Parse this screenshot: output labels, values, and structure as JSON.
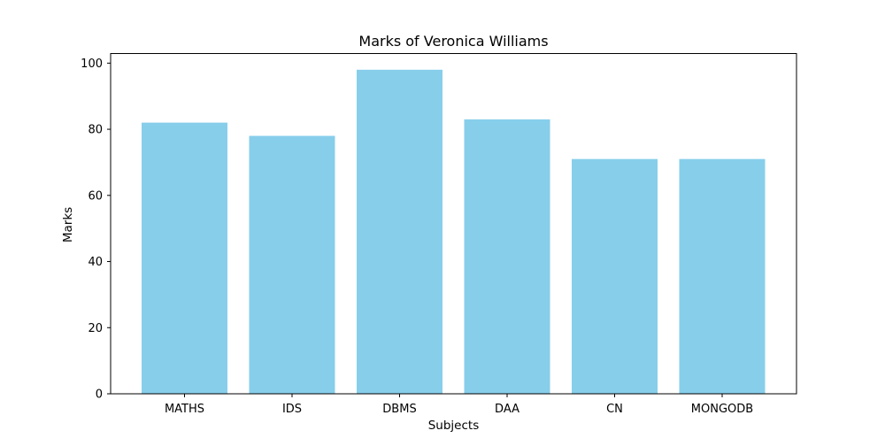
{
  "chart_data": {
    "type": "bar",
    "title": "Marks of Veronica Williams",
    "xlabel": "Subjects",
    "ylabel": "Marks",
    "categories": [
      "MATHS",
      "IDS",
      "DBMS",
      "DAA",
      "CN",
      "MONGODB"
    ],
    "values": [
      82,
      78,
      98,
      83,
      71,
      71
    ],
    "ylim": [
      0,
      102.9
    ],
    "yticks": [
      0,
      20,
      40,
      60,
      80,
      100
    ],
    "ytick_labels": [
      "0",
      "20",
      "40",
      "60",
      "80",
      "100"
    ],
    "bar_color": "#87ceeb",
    "grid": false,
    "legend": "none"
  }
}
